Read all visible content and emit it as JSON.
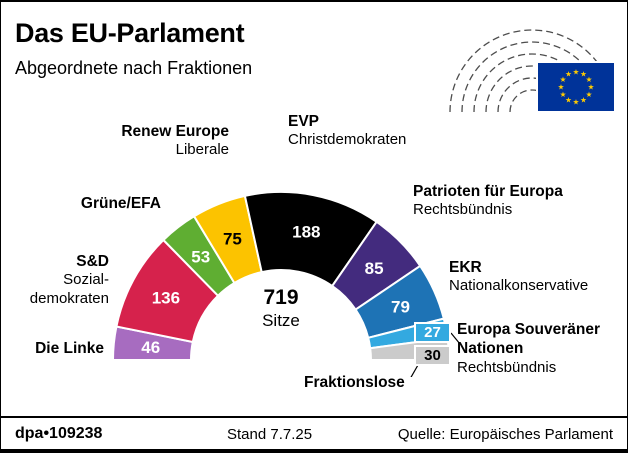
{
  "header": {
    "title": "Das EU-Parlament",
    "subtitle": "Abgeordnete nach Fraktionen"
  },
  "logo": {
    "name": "eu-parliament-logo",
    "flag_bg": "#003399",
    "star_color": "#ffcc00"
  },
  "chart_data": {
    "type": "pie",
    "layout": "semicircle-donut",
    "title": "Das EU-Parlament — Abgeordnete nach Fraktionen",
    "total_seats": 719,
    "center": {
      "value": "719",
      "unit": "Sitze"
    },
    "segments": [
      {
        "id": "die-linke",
        "name": "Die Linke",
        "desc": "",
        "seats": 46,
        "color": "#a76cc0",
        "value_color": "#ffffff",
        "value_inside": true
      },
      {
        "id": "sd",
        "name": "S&D",
        "desc": "Sozialdemokraten",
        "seats": 136,
        "color": "#d6224c",
        "value_color": "#ffffff",
        "value_inside": true
      },
      {
        "id": "gruene-efa",
        "name": "Grüne/EFA",
        "desc": "",
        "seats": 53,
        "color": "#5fae32",
        "value_color": "#ffffff",
        "value_inside": true
      },
      {
        "id": "renew",
        "name": "Renew Europe",
        "desc": "Liberale",
        "seats": 75,
        "color": "#fcc300",
        "value_color": "#000000",
        "value_inside": true
      },
      {
        "id": "evp",
        "name": "EVP",
        "desc": "Christdemokraten",
        "seats": 188,
        "color": "#000000",
        "value_color": "#ffffff",
        "value_inside": true
      },
      {
        "id": "patrioten",
        "name": "Patrioten für Europa",
        "desc": "Rechtsbündnis",
        "seats": 85,
        "color": "#432b7e",
        "value_color": "#ffffff",
        "value_inside": true
      },
      {
        "id": "ekr",
        "name": "EKR",
        "desc": "Nationalkonservative",
        "seats": 79,
        "color": "#1e73b5",
        "value_color": "#ffffff",
        "value_inside": true
      },
      {
        "id": "esn",
        "name": "Europa Souveräner Nationen",
        "desc": "Rechtsbündnis",
        "seats": 27,
        "color": "#33a9e0",
        "value_color": "#ffffff",
        "value_inside": false
      },
      {
        "id": "fraktionslose",
        "name": "Fraktionslose",
        "desc": "",
        "seats": 30,
        "color": "#cbcbcb",
        "value_color": "#000000",
        "value_inside": false
      }
    ]
  },
  "labels": {
    "renew": {
      "line1": "Renew Europe",
      "line2": "Liberale"
    },
    "evp": {
      "line1": "EVP",
      "line2": "Christdemokraten"
    },
    "gruene": {
      "line1": "Grüne/EFA"
    },
    "sd": {
      "line1": "S&D",
      "line2": "Sozial-",
      "line3": "demokraten"
    },
    "linke": {
      "line1": "Die Linke"
    },
    "patrioten": {
      "line1": "Patrioten für Europa",
      "line2": "Rechtsbündnis"
    },
    "ekr": {
      "line1": "EKR",
      "line2": "Nationalkonservative"
    },
    "esn": {
      "line1": "Europa Souveräner",
      "line2": "Nationen",
      "line3": "Rechtsbündnis"
    },
    "fraktionslose": {
      "line1": "Fraktionslose"
    }
  },
  "footer": {
    "brand": "dpa•109238",
    "stand": "Stand 7.7.25",
    "source": "Quelle: Europäisches Parlament"
  }
}
